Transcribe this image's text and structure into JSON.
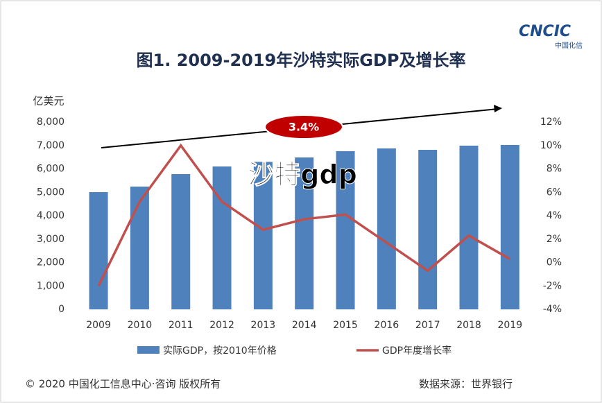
{
  "chart_data": {
    "type": "bar_line",
    "title": "图1. 2009-2019年沙特实际GDP及增长率",
    "logo": "CNCIC",
    "logo_sub": "中国化信",
    "y_label": "亿美元",
    "categories": [
      "2009",
      "2010",
      "2011",
      "2012",
      "2013",
      "2014",
      "2015",
      "2016",
      "2017",
      "2018",
      "2019"
    ],
    "series": [
      {
        "name": "实际GDP，按2010年价格",
        "color": "#4f81bd",
        "kind": "bar",
        "values": [
          5007,
          5244,
          5778,
          6104,
          6300,
          6489,
          6756,
          6874,
          6815,
          6993,
          7022
        ]
      },
      {
        "name": "GDP年度增长率",
        "color": "#c0504d",
        "kind": "line",
        "axis": "y2",
        "values": [
          -2.0,
          5.2,
          10.0,
          5.2,
          2.8,
          3.7,
          4.1,
          1.7,
          -0.7,
          2.3,
          0.3
        ]
      }
    ],
    "ylim": [
      0,
      8000
    ],
    "yticks": [
      0,
      {
        "value": 1000,
        "label": "1,000"
      },
      {
        "value": 2000,
        "label": "2,000"
      },
      {
        "value": 3000,
        "label": "3,000"
      },
      {
        "value": 4000,
        "label": "4,000"
      },
      {
        "value": 5000,
        "label": "5,000"
      },
      {
        "value": 6000,
        "label": "6,000"
      },
      {
        "value": 7000,
        "label": "7,000"
      },
      {
        "value": 8000,
        "label": "8,000"
      }
    ],
    "y2lim": [
      -4,
      12
    ],
    "y2ticks": [
      {
        "value": -4,
        "label": "-4%"
      },
      {
        "value": -2,
        "label": "-2%"
      },
      {
        "value": 0,
        "label": "0%"
      },
      {
        "value": 2,
        "label": "2%"
      },
      {
        "value": 4,
        "label": "4%"
      },
      {
        "value": 6,
        "label": "6%"
      },
      {
        "value": 8,
        "label": "8%"
      },
      {
        "value": 10,
        "label": "10%"
      },
      {
        "value": 12,
        "label": "12%"
      }
    ],
    "annotation": "3.4%",
    "watermark": "沙特gdp",
    "copyright": "© 2020 中国化工信息中心·咨询 版权所有",
    "source": "数据来源：世界银行"
  }
}
